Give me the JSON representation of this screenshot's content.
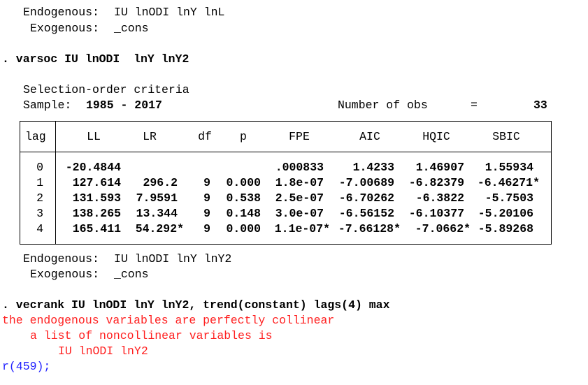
{
  "prev_output": {
    "endogenous_label": "Endogenous:",
    "endogenous_vars": "IU lnODI lnY lnL",
    "exogenous_label": "Exogenous:",
    "exogenous_vars": "_cons"
  },
  "cmd1": ". varsoc IU lnODI  lnY lnY2",
  "varsoc": {
    "title": "Selection-order criteria",
    "sample_label": "Sample:",
    "sample_value": "1985 - 2017",
    "nobs_label": "Number of obs",
    "nobs_eq": "=",
    "nobs_value": "33",
    "headers": [
      "lag",
      "LL",
      "LR",
      "df",
      "p",
      "FPE",
      "AIC",
      "HQIC",
      "SBIC"
    ],
    "rows": [
      [
        "0",
        "-20.4844",
        "",
        "",
        "",
        ".000833",
        "1.4233",
        "1.46907",
        "1.55934"
      ],
      [
        "1",
        "127.614",
        "296.2",
        "9",
        "0.000",
        "1.8e-07",
        "-7.00689",
        "-6.82379",
        "-6.46271*"
      ],
      [
        "2",
        "131.593",
        "7.9591",
        "9",
        "0.538",
        "2.5e-07",
        "-6.70262",
        "-6.3822",
        "-5.7503"
      ],
      [
        "3",
        "138.265",
        "13.344",
        "9",
        "0.148",
        "3.0e-07",
        "-6.56152",
        "-6.10377",
        "-5.20106"
      ],
      [
        "4",
        "165.411",
        "54.292*",
        "9",
        "0.000",
        "1.1e-07*",
        "-7.66128*",
        "-7.0662*",
        "-5.89268"
      ]
    ],
    "endogenous_label": "Endogenous:",
    "endogenous_vars": "IU lnODI lnY lnY2",
    "exogenous_label": "Exogenous:",
    "exogenous_vars": "_cons"
  },
  "cmd2": ". vecrank IU lnODI lnY lnY2, trend(constant) lags(4) max",
  "error": {
    "line1": "the endogenous variables are perfectly collinear",
    "line2": "a list of noncollinear variables is",
    "line3": "IU lnODI lnY2",
    "return_code": "r(459);"
  },
  "colors": {
    "error": "#ff2020",
    "return_code": "#2020ff",
    "text": "#000000"
  }
}
